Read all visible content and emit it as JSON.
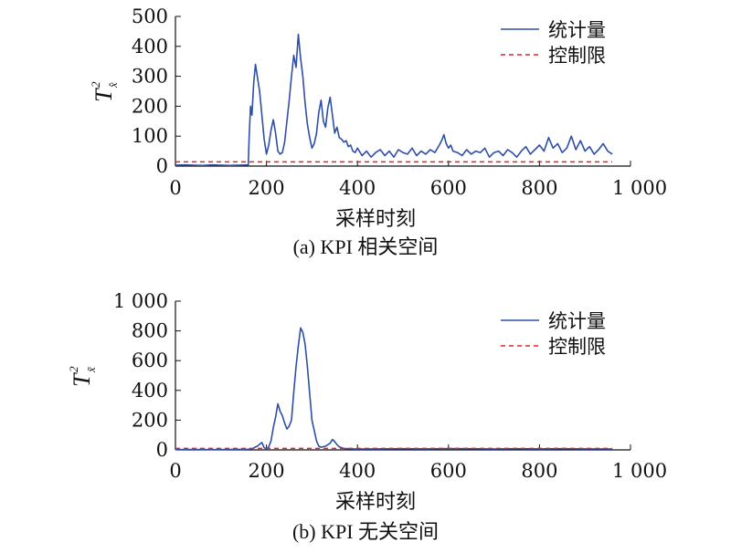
{
  "chart_data": [
    {
      "type": "line",
      "caption": "(a) KPI 相关空间",
      "xlabel": "采样时刻",
      "ylabel": "T",
      "ylabel_sup": "2",
      "ylabel_sub": "x̂",
      "xlim": [
        0,
        1000
      ],
      "ylim": [
        0,
        500
      ],
      "xticks": [
        "0",
        "200",
        "400",
        "600",
        "800",
        "1 000"
      ],
      "yticks": [
        "0",
        "100",
        "200",
        "300",
        "400",
        "500"
      ],
      "grid": false,
      "legend_position": "top-right",
      "series": [
        {
          "name": "统计量",
          "color": "#2e4fa8",
          "style": "solid",
          "x": [
            0,
            20,
            40,
            60,
            80,
            100,
            120,
            140,
            160,
            162,
            165,
            168,
            172,
            176,
            180,
            185,
            190,
            195,
            200,
            205,
            210,
            215,
            220,
            225,
            230,
            235,
            240,
            245,
            250,
            255,
            260,
            265,
            270,
            275,
            280,
            285,
            290,
            295,
            300,
            305,
            310,
            315,
            320,
            325,
            330,
            335,
            340,
            345,
            350,
            355,
            360,
            365,
            370,
            375,
            380,
            385,
            390,
            395,
            400,
            410,
            420,
            430,
            440,
            450,
            460,
            470,
            480,
            490,
            500,
            510,
            520,
            530,
            540,
            550,
            560,
            570,
            580,
            585,
            590,
            595,
            600,
            605,
            610,
            620,
            630,
            640,
            650,
            660,
            670,
            680,
            690,
            700,
            710,
            720,
            730,
            740,
            750,
            760,
            770,
            780,
            790,
            800,
            810,
            820,
            830,
            840,
            850,
            860,
            870,
            880,
            890,
            900,
            910,
            920,
            930,
            940,
            950,
            960
          ],
          "y": [
            3,
            4,
            3,
            2,
            4,
            3,
            2,
            3,
            4,
            100,
            200,
            170,
            280,
            340,
            300,
            250,
            170,
            90,
            40,
            70,
            120,
            155,
            110,
            50,
            40,
            45,
            80,
            150,
            220,
            300,
            370,
            330,
            440,
            360,
            300,
            210,
            140,
            95,
            60,
            75,
            110,
            180,
            220,
            150,
            130,
            195,
            230,
            170,
            110,
            130,
            95,
            90,
            80,
            85,
            65,
            70,
            50,
            45,
            60,
            35,
            50,
            30,
            45,
            55,
            35,
            50,
            30,
            55,
            45,
            40,
            60,
            35,
            50,
            40,
            55,
            45,
            70,
            85,
            105,
            75,
            60,
            70,
            50,
            45,
            35,
            55,
            40,
            50,
            45,
            60,
            30,
            45,
            50,
            35,
            55,
            45,
            30,
            50,
            65,
            40,
            55,
            70,
            50,
            95,
            60,
            75,
            45,
            60,
            100,
            55,
            85,
            50,
            65,
            40,
            55,
            75,
            50,
            40
          ]
        },
        {
          "name": "控制限",
          "color": "#d9262c",
          "style": "dashed",
          "x": [
            0,
            960
          ],
          "y": [
            14,
            14
          ]
        }
      ]
    },
    {
      "type": "line",
      "caption": "(b) KPI 无关空间",
      "xlabel": "采样时刻",
      "ylabel": "T",
      "ylabel_sup": "2",
      "ylabel_sub": "x̃",
      "xlim": [
        0,
        1000
      ],
      "ylim": [
        0,
        1000
      ],
      "xticks": [
        "0",
        "200",
        "400",
        "600",
        "800",
        "1 000"
      ],
      "yticks": [
        "0",
        "200",
        "400",
        "600",
        "800",
        "1 000"
      ],
      "grid": false,
      "legend_position": "top-right",
      "series": [
        {
          "name": "统计量",
          "color": "#2e4fa8",
          "style": "solid",
          "x": [
            0,
            40,
            80,
            120,
            160,
            170,
            180,
            190,
            195,
            200,
            205,
            210,
            215,
            220,
            225,
            230,
            235,
            240,
            245,
            250,
            255,
            260,
            265,
            270,
            275,
            280,
            285,
            290,
            295,
            300,
            305,
            310,
            315,
            320,
            330,
            340,
            345,
            350,
            355,
            360,
            370,
            380,
            390,
            400,
            450,
            500,
            550,
            600,
            650,
            700,
            750,
            800,
            850,
            900,
            960
          ],
          "y": [
            2,
            3,
            2,
            3,
            4,
            10,
            25,
            50,
            15,
            5,
            20,
            60,
            150,
            220,
            310,
            260,
            230,
            180,
            140,
            160,
            200,
            390,
            560,
            700,
            820,
            790,
            710,
            560,
            380,
            200,
            130,
            60,
            25,
            18,
            25,
            45,
            70,
            55,
            35,
            20,
            10,
            8,
            7,
            6,
            7,
            8,
            7,
            9,
            8,
            6,
            8,
            7,
            8,
            7,
            6
          ]
        },
        {
          "name": "控制限",
          "color": "#d9262c",
          "style": "dashed",
          "x": [
            0,
            960
          ],
          "y": [
            10,
            10
          ]
        }
      ]
    }
  ]
}
